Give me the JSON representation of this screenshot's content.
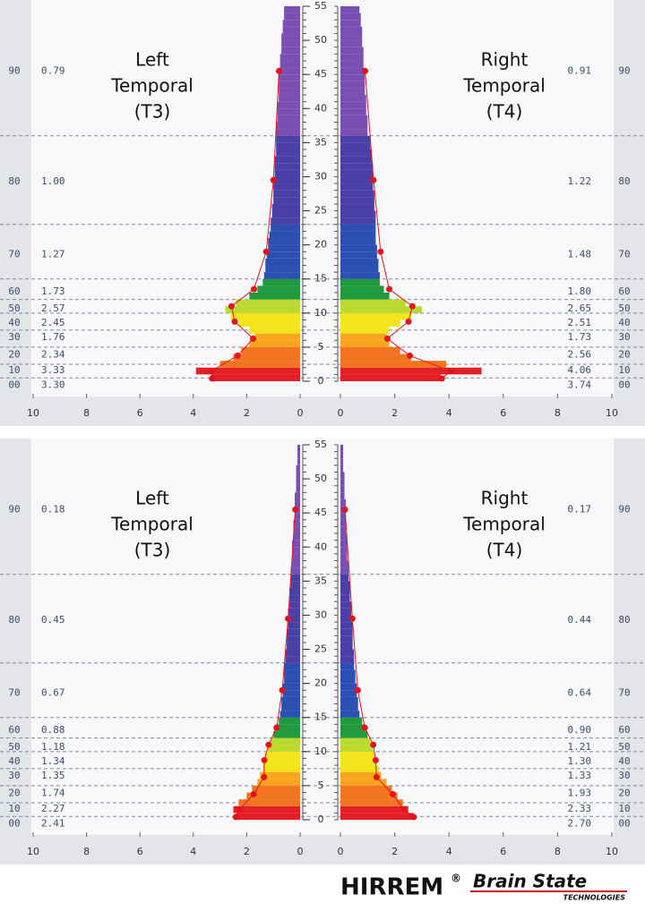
{
  "chart_data": [
    {
      "type": "bar",
      "orientation": "horizontal",
      "ylim": [
        0,
        55
      ],
      "yticks": [
        0,
        5,
        10,
        15,
        20,
        25,
        30,
        35,
        40,
        45,
        50,
        55
      ],
      "xlim": [
        0,
        10
      ],
      "xticks": [
        0,
        2,
        4,
        6,
        8,
        10
      ],
      "y": [
        0,
        1,
        2,
        3,
        4,
        5,
        6,
        7,
        8,
        9,
        10,
        11,
        12,
        13,
        14,
        15,
        16,
        17,
        18,
        19,
        20,
        21,
        22,
        23,
        24,
        25,
        26,
        27,
        28,
        29,
        30,
        31,
        32,
        33,
        34,
        35,
        36,
        37,
        38,
        39,
        40,
        41,
        42,
        43,
        44,
        45,
        46,
        47,
        48,
        49,
        50,
        51,
        52,
        53,
        54
      ],
      "band_codes": [
        "00",
        "10",
        "20",
        "30",
        "40",
        "50",
        "60",
        "70",
        "80",
        "90"
      ],
      "band_edges": [
        0.5,
        2.5,
        5,
        7.5,
        10,
        12,
        15,
        23,
        36
      ],
      "band_colors": [
        "#e41f26",
        "#e41f26",
        "#f27420",
        "#f8a51d",
        "#f3e41b",
        "#bcd930",
        "#1f9a3c",
        "#2c4fb3",
        "#4a3fa6",
        "#7b4eb2"
      ],
      "dot_freqs": [
        0.4,
        1.5,
        3.75,
        6.25,
        8.75,
        11,
        13.5,
        19,
        29.5,
        45.5
      ],
      "dot_color": "#e3141c",
      "series": [
        {
          "name": [
            "Left",
            "Temporal",
            "(T3)"
          ],
          "side": "left",
          "values": [
            3.3,
            3.9,
            3.0,
            2.5,
            2.2,
            1.9,
            1.7,
            1.9,
            2.3,
            2.6,
            2.8,
            2.4,
            1.9,
            1.6,
            1.4,
            1.35,
            1.3,
            1.3,
            1.25,
            1.2,
            1.2,
            1.15,
            1.1,
            1.1,
            1.05,
            1.05,
            1.0,
            1.0,
            1.0,
            1.0,
            0.95,
            0.95,
            0.95,
            0.9,
            0.9,
            0.9,
            0.9,
            0.9,
            0.85,
            0.85,
            0.85,
            0.8,
            0.8,
            0.8,
            0.8,
            0.8,
            0.75,
            0.75,
            0.7,
            0.7,
            0.7,
            0.65,
            0.65,
            0.6,
            0.6
          ],
          "band_values": [
            3.3,
            3.33,
            2.34,
            1.76,
            2.45,
            2.57,
            1.73,
            1.27,
            1.0,
            0.79
          ],
          "band_value_labels": [
            "3.30",
            "3.33",
            "2.34",
            "1.76",
            "2.45",
            "2.57",
            "1.73",
            "1.27",
            "1.00",
            "0.79"
          ]
        },
        {
          "name": [
            "Right",
            "Temporal",
            "(T4)"
          ],
          "side": "right",
          "values": [
            3.7,
            5.2,
            3.9,
            2.6,
            2.2,
            1.8,
            1.7,
            1.8,
            2.2,
            2.6,
            3.0,
            2.4,
            1.8,
            1.6,
            1.45,
            1.45,
            1.4,
            1.4,
            1.35,
            1.35,
            1.3,
            1.3,
            1.3,
            1.3,
            1.3,
            1.25,
            1.25,
            1.25,
            1.2,
            1.2,
            1.2,
            1.2,
            1.15,
            1.15,
            1.1,
            1.1,
            1.0,
            1.0,
            1.0,
            0.95,
            0.95,
            0.95,
            0.9,
            0.9,
            0.9,
            0.9,
            0.85,
            0.85,
            0.85,
            0.8,
            0.8,
            0.8,
            0.75,
            0.75,
            0.7
          ],
          "band_values": [
            3.74,
            4.06,
            2.56,
            1.73,
            2.51,
            2.65,
            1.8,
            1.48,
            1.22,
            0.91
          ],
          "band_value_labels": [
            "3.74",
            "4.06",
            "2.56",
            "1.73",
            "2.51",
            "2.65",
            "1.80",
            "1.48",
            "1.22",
            "0.91"
          ]
        }
      ]
    },
    {
      "type": "bar",
      "orientation": "horizontal",
      "ylim": [
        0,
        55
      ],
      "yticks": [
        0,
        5,
        10,
        15,
        20,
        25,
        30,
        35,
        40,
        45,
        50,
        55
      ],
      "xlim": [
        0,
        10
      ],
      "xticks": [
        0,
        2,
        4,
        6,
        8,
        10
      ],
      "y": [
        0,
        1,
        2,
        3,
        4,
        5,
        6,
        7,
        8,
        9,
        10,
        11,
        12,
        13,
        14,
        15,
        16,
        17,
        18,
        19,
        20,
        21,
        22,
        23,
        24,
        25,
        26,
        27,
        28,
        29,
        30,
        31,
        32,
        33,
        34,
        35,
        36,
        37,
        38,
        39,
        40,
        41,
        42,
        43,
        44,
        45,
        46,
        47,
        48,
        49,
        50,
        51,
        52,
        53,
        54
      ],
      "band_codes": [
        "00",
        "10",
        "20",
        "30",
        "40",
        "50",
        "60",
        "70",
        "80",
        "90"
      ],
      "band_edges": [
        0.5,
        2.5,
        5,
        7.5,
        10,
        12,
        15,
        23,
        36
      ],
      "band_colors": [
        "#e41f26",
        "#e41f26",
        "#f27420",
        "#f8a51d",
        "#f3e41b",
        "#bcd930",
        "#1f9a3c",
        "#2c4fb3",
        "#4a3fa6",
        "#7b4eb2"
      ],
      "dot_freqs": [
        0.4,
        1.5,
        3.75,
        6.25,
        8.75,
        11,
        13.5,
        19,
        29.5,
        45.5
      ],
      "dot_color": "#e3141c",
      "series": [
        {
          "name": [
            "Left",
            "Temporal",
            "(T3)"
          ],
          "side": "left",
          "values": [
            2.4,
            2.5,
            2.3,
            2.0,
            1.8,
            1.6,
            1.5,
            1.4,
            1.4,
            1.3,
            1.2,
            1.1,
            1.0,
            0.9,
            0.8,
            0.75,
            0.7,
            0.7,
            0.65,
            0.65,
            0.6,
            0.6,
            0.6,
            0.55,
            0.55,
            0.5,
            0.5,
            0.5,
            0.45,
            0.45,
            0.45,
            0.4,
            0.4,
            0.4,
            0.35,
            0.35,
            0.35,
            0.3,
            0.3,
            0.3,
            0.3,
            0.25,
            0.25,
            0.25,
            0.2,
            0.2,
            0.2,
            0.2,
            0.15,
            0.15,
            0.15,
            0.15,
            0.1,
            0.1,
            0.1
          ],
          "band_values": [
            2.41,
            2.27,
            1.74,
            1.35,
            1.34,
            1.18,
            0.88,
            0.67,
            0.45,
            0.18
          ],
          "band_value_labels": [
            "2.41",
            "2.27",
            "1.74",
            "1.35",
            "1.34",
            "1.18",
            "0.88",
            "0.67",
            "0.45",
            "0.18"
          ]
        },
        {
          "name": [
            "Right",
            "Temporal",
            "(T4)"
          ],
          "side": "right",
          "values": [
            2.7,
            2.5,
            2.3,
            2.1,
            1.9,
            1.7,
            1.5,
            1.4,
            1.3,
            1.25,
            1.2,
            1.1,
            1.0,
            0.9,
            0.8,
            0.7,
            0.65,
            0.65,
            0.6,
            0.6,
            0.55,
            0.55,
            0.5,
            0.5,
            0.5,
            0.45,
            0.45,
            0.45,
            0.45,
            0.4,
            0.4,
            0.4,
            0.35,
            0.35,
            0.35,
            0.3,
            0.3,
            0.3,
            0.25,
            0.25,
            0.25,
            0.25,
            0.2,
            0.2,
            0.2,
            0.2,
            0.2,
            0.15,
            0.15,
            0.15,
            0.15,
            0.1,
            0.1,
            0.1,
            0.1
          ],
          "band_values": [
            2.7,
            2.33,
            1.93,
            1.33,
            1.3,
            1.21,
            0.9,
            0.64,
            0.44,
            0.17
          ],
          "band_value_labels": [
            "2.70",
            "2.33",
            "1.93",
            "1.33",
            "1.30",
            "1.21",
            "0.90",
            "0.64",
            "0.44",
            "0.17"
          ]
        }
      ]
    }
  ],
  "footer": {
    "brand": "HIRREM",
    "reg": "®",
    "logo": "Brain State",
    "logo_sub": "TECHNOLOGIES"
  }
}
